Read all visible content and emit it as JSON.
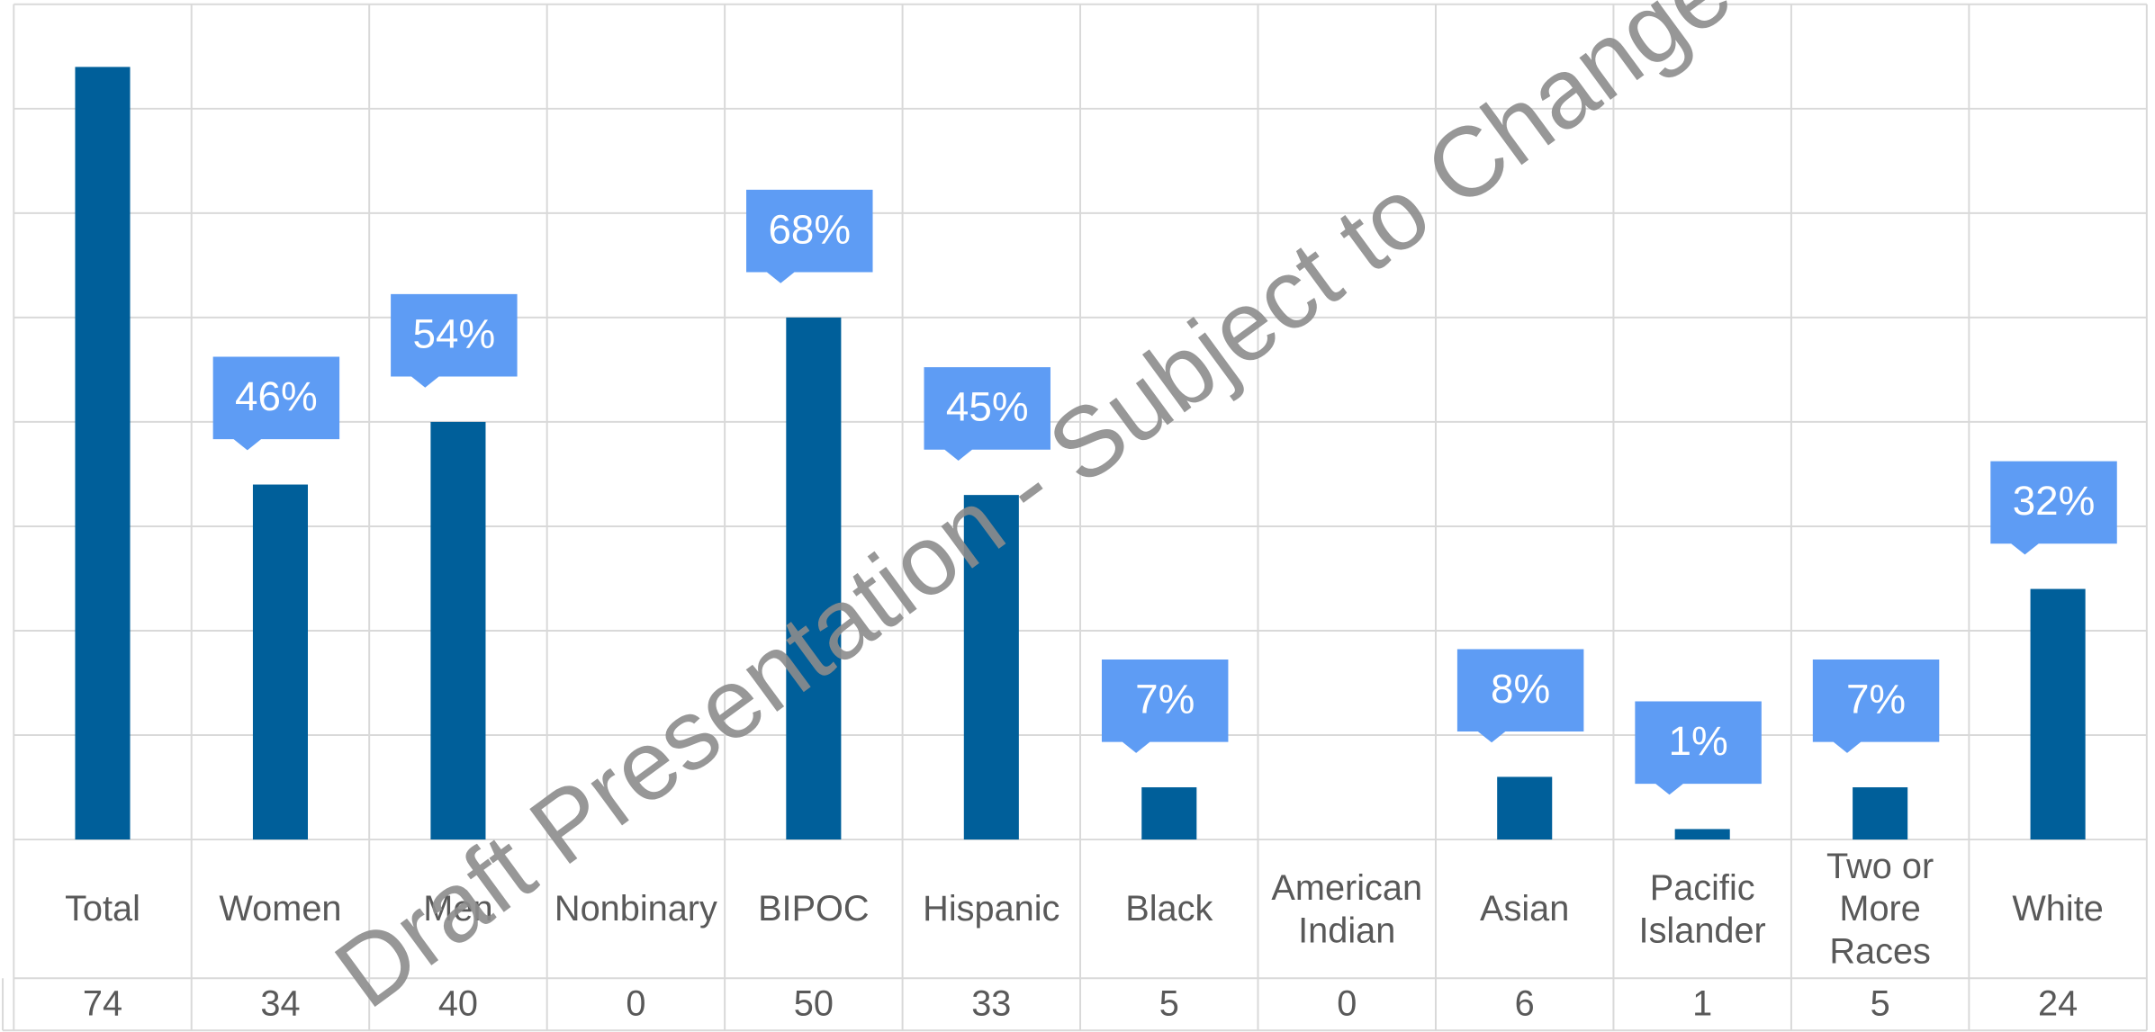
{
  "chart_data": {
    "type": "bar",
    "categories": [
      "Total",
      "Women",
      "Men",
      "Nonbinary",
      "BIPOC",
      "Hispanic",
      "Black",
      "American Indian",
      "Asian",
      "Pacific Islander",
      "Two or More Races",
      "White"
    ],
    "values": [
      74,
      34,
      40,
      0,
      50,
      33,
      5,
      0,
      6,
      1,
      5,
      24
    ],
    "callouts": [
      null,
      "46%",
      "54%",
      null,
      "68%",
      "45%",
      "7%",
      null,
      "8%",
      "1%",
      "7%",
      "32%"
    ],
    "color": "#005f9a",
    "callout_color": "#5e9cf4",
    "ylim": [
      0,
      80
    ],
    "yticks": [
      0,
      10,
      20,
      30,
      40,
      50,
      60,
      70,
      80
    ],
    "grid": true,
    "watermark": "Draft Presentation - Subject to Change"
  }
}
